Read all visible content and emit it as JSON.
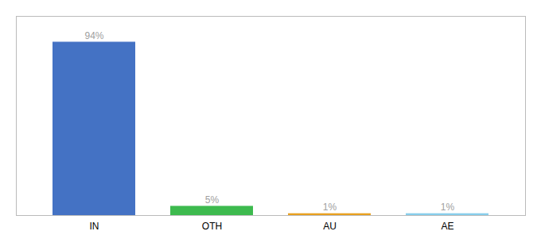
{
  "chart_data": {
    "type": "bar",
    "categories": [
      "IN",
      "OTH",
      "AU",
      "AE"
    ],
    "values": [
      94,
      5,
      1,
      1
    ],
    "colors": [
      "#4472c4",
      "#3dba4e",
      "#e8a020",
      "#87ceeb"
    ],
    "data_labels": true,
    "value_labels": [
      "94%",
      "5%",
      "1%",
      "1%"
    ],
    "ylim": [
      0,
      108
    ],
    "tick_labels": "x"
  }
}
